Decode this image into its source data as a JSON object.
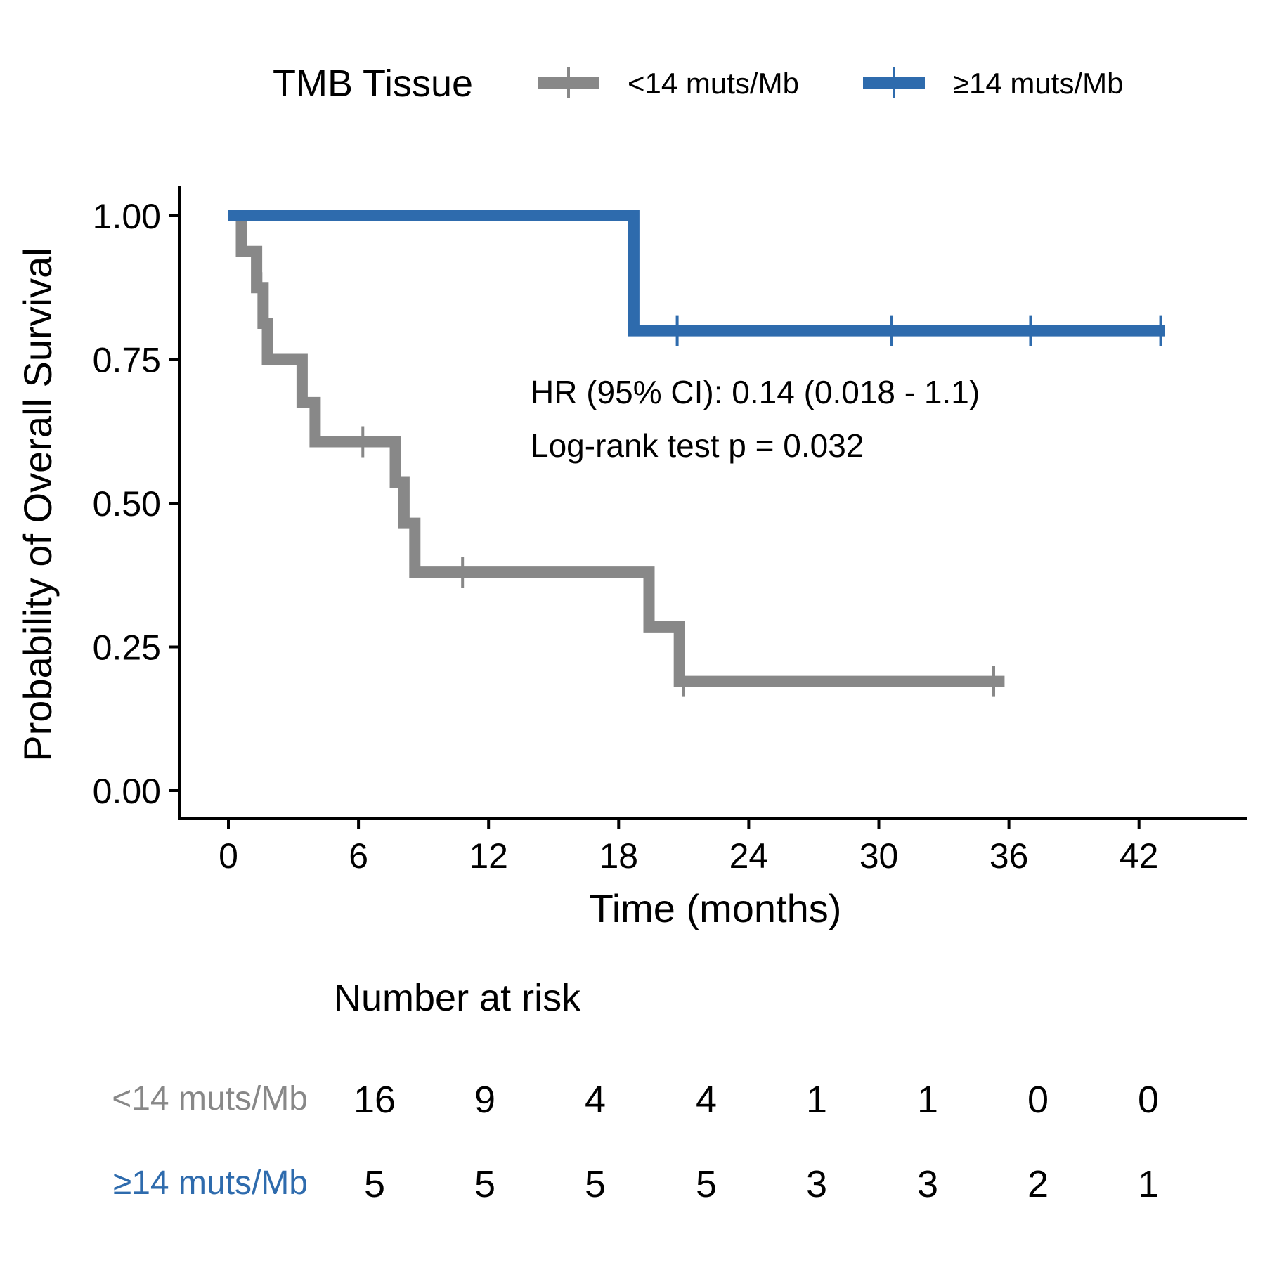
{
  "legend": {
    "title": "TMB Tissue"
  },
  "chart_data": {
    "type": "line",
    "subtype": "kaplan-meier",
    "xlabel": "Time (months)",
    "ylabel": "Probability of Overall Survival",
    "xlim": [
      0,
      48
    ],
    "ylim": [
      -0.05,
      1.05
    ],
    "x_ticks": [
      0,
      6,
      12,
      18,
      24,
      30,
      36,
      42
    ],
    "y_ticks": [
      0.0,
      0.25,
      0.5,
      0.75,
      1.0
    ],
    "y_tick_labels": [
      "0.00",
      "0.25",
      "0.50",
      "0.75",
      "1.00"
    ],
    "grid": false,
    "legend_position": "top",
    "series": [
      {
        "name": "<14 muts/Mb",
        "color": "#888888",
        "steps": [
          [
            0,
            1.0
          ],
          [
            0.6,
            0.938
          ],
          [
            1.3,
            0.875
          ],
          [
            1.6,
            0.813
          ],
          [
            1.8,
            0.75
          ],
          [
            3.4,
            0.675
          ],
          [
            4.0,
            0.607
          ],
          [
            7.7,
            0.536
          ],
          [
            8.1,
            0.465
          ],
          [
            8.6,
            0.38
          ],
          [
            19.4,
            0.285
          ],
          [
            20.8,
            0.19
          ]
        ],
        "end": 35.8,
        "censored": [
          [
            1.5,
            0.875
          ],
          [
            6.2,
            0.607
          ],
          [
            10.8,
            0.38
          ],
          [
            21.0,
            0.19
          ],
          [
            35.3,
            0.19
          ]
        ]
      },
      {
        "name": "≥14 muts/Mb",
        "color": "#2E6BAD",
        "steps": [
          [
            0,
            1.0
          ],
          [
            18.7,
            0.8
          ]
        ],
        "end": 43.2,
        "censored": [
          [
            20.7,
            0.8
          ],
          [
            30.6,
            0.8
          ],
          [
            37.0,
            0.8
          ],
          [
            43.0,
            0.8
          ]
        ]
      }
    ],
    "annotations": [
      "HR (95% CI): 0.14 (0.018 - 1.1)",
      "Log-rank test p = 0.032"
    ]
  },
  "risk_table": {
    "title": "Number at risk",
    "time_points": [
      0,
      6,
      12,
      18,
      24,
      30,
      36,
      42
    ],
    "rows": [
      {
        "label": "<14 muts/Mb",
        "color": "#888888",
        "values": [
          "16",
          "9",
          "4",
          "4",
          "1",
          "1",
          "0",
          "0"
        ]
      },
      {
        "label": "≥14 muts/Mb",
        "color": "#2E6BAD",
        "values": [
          "5",
          "5",
          "5",
          "5",
          "3",
          "3",
          "2",
          "1"
        ]
      }
    ]
  }
}
